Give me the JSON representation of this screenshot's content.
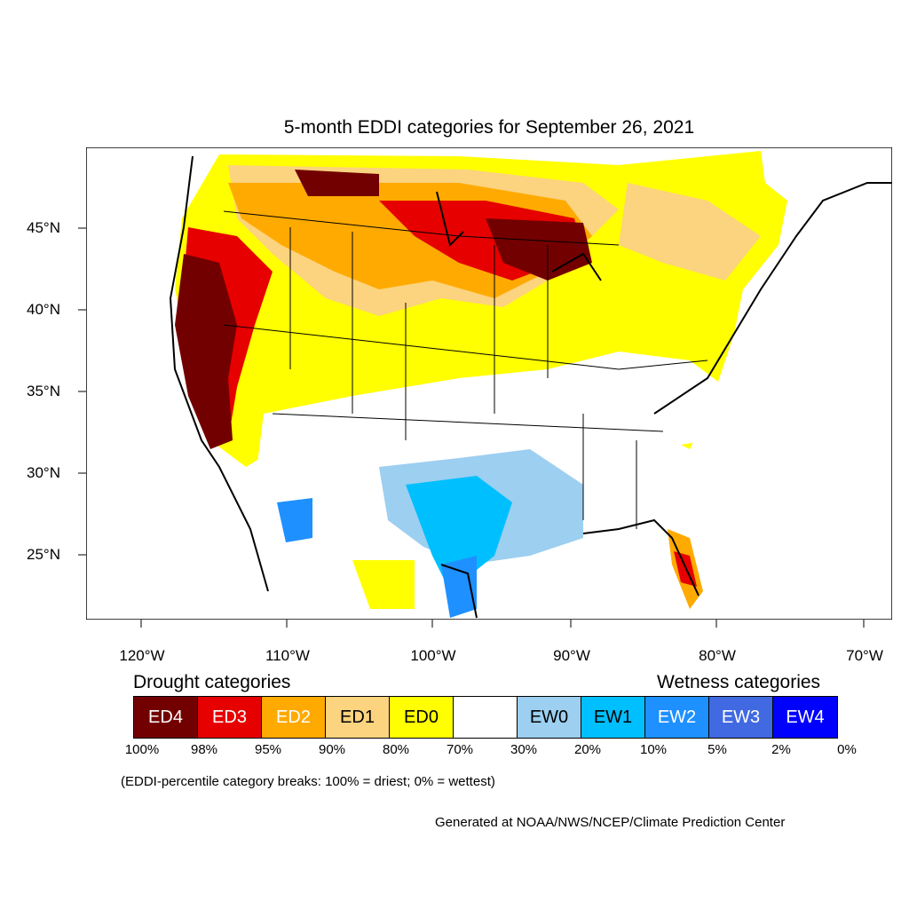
{
  "title": "5-month EDDI categories for September 26, 2021",
  "lat_labels": [
    "45°N",
    "40°N",
    "35°N",
    "30°N",
    "25°N"
  ],
  "lon_labels": [
    "120°W",
    "110°W",
    "100°W",
    "90°W",
    "80°W",
    "70°W"
  ],
  "legend": {
    "drought_heading": "Drought categories",
    "wetness_heading": "Wetness categories",
    "categories": [
      {
        "label": "ED4",
        "color": "#730000",
        "text_color": "#ffffff"
      },
      {
        "label": "ED3",
        "color": "#e60000",
        "text_color": "#ffffff"
      },
      {
        "label": "ED2",
        "color": "#ffaa00",
        "text_color": "#ffffff"
      },
      {
        "label": "ED1",
        "color": "#fcd37f",
        "text_color": "#000000"
      },
      {
        "label": "ED0",
        "color": "#ffff00",
        "text_color": "#000000"
      },
      {
        "label": "",
        "color": "#ffffff",
        "text_color": "#000000"
      },
      {
        "label": "EW0",
        "color": "#9ccff0",
        "text_color": "#000000"
      },
      {
        "label": "EW1",
        "color": "#00bfff",
        "text_color": "#000000"
      },
      {
        "label": "EW2",
        "color": "#1e90ff",
        "text_color": "#ffffff"
      },
      {
        "label": "EW3",
        "color": "#4169e1",
        "text_color": "#ffffff"
      },
      {
        "label": "EW4",
        "color": "#0000ff",
        "text_color": "#ffffff"
      }
    ],
    "breaks": [
      "100%",
      "98%",
      "95%",
      "90%",
      "80%",
      "70%",
      "30%",
      "20%",
      "10%",
      "5%",
      "2%",
      "0%"
    ]
  },
  "note": "(EDDI-percentile category breaks: 100% = driest; 0% = wettest)",
  "credit": "Generated at NOAA/NWS/NCEP/Climate Prediction Center"
}
